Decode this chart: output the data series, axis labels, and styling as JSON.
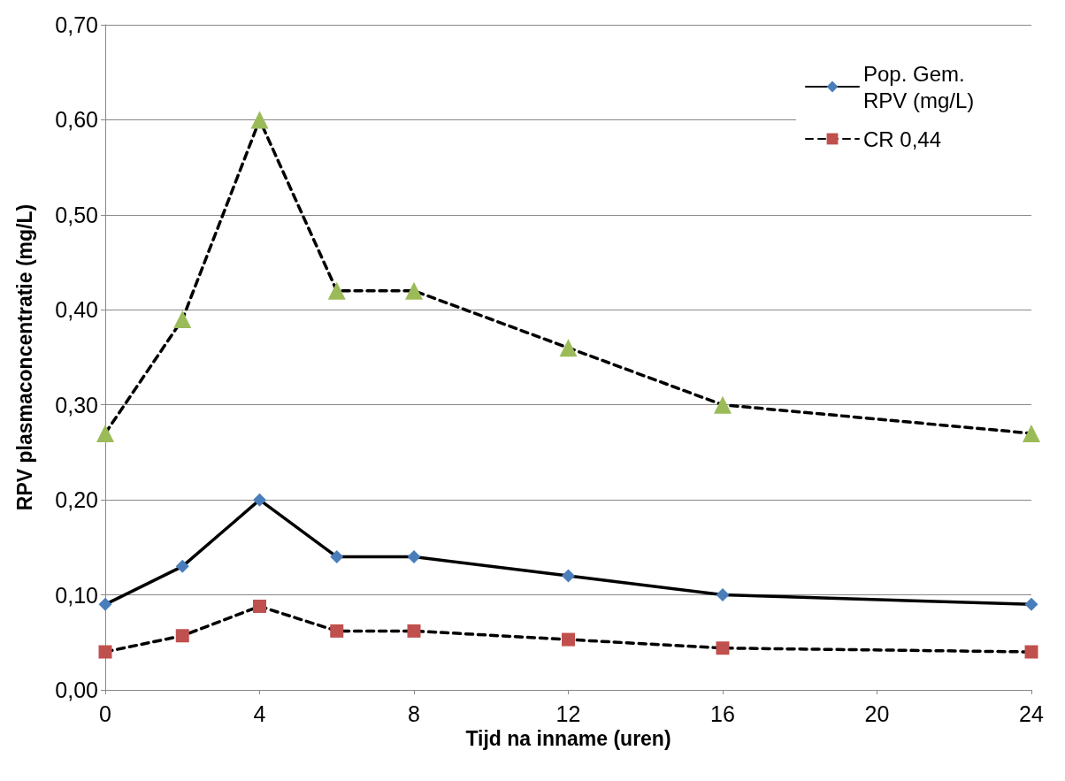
{
  "chart_data": {
    "type": "line",
    "xlabel": "Tijd na inname (uren)",
    "ylabel": "RPV plasmaconcentratie (mg/L)",
    "x": [
      0,
      2,
      4,
      6,
      8,
      12,
      16,
      24
    ],
    "xlim": [
      0,
      24
    ],
    "xticks": [
      0,
      4,
      8,
      12,
      16,
      20,
      24
    ],
    "ylim": [
      0,
      0.7
    ],
    "yticks": [
      {
        "value": 0,
        "label": "0,00"
      },
      {
        "value": 0.1,
        "label": "0,10"
      },
      {
        "value": 0.2,
        "label": "0,20"
      },
      {
        "value": 0.3,
        "label": "0,30"
      },
      {
        "value": 0.4,
        "label": "0,40"
      },
      {
        "value": 0.5,
        "label": "0,50"
      },
      {
        "value": 0.6,
        "label": "0,60"
      },
      {
        "value": 0.7,
        "label": "0,70"
      }
    ],
    "grid": "y",
    "legend": "top right",
    "series": [
      {
        "name": "Pop. Gem. RPV (mg/L)",
        "color": "#4a7ebb",
        "marker": "diamond",
        "line_style": "solid",
        "values": [
          0.09,
          0.13,
          0.2,
          0.14,
          0.14,
          0.12,
          0.1,
          0.09
        ]
      },
      {
        "name": "CR 0,44",
        "color": "#c0504d",
        "marker": "square",
        "line_style": "dashed",
        "values": [
          0.04,
          0.057,
          0.088,
          0.062,
          0.062,
          0.053,
          0.044,
          0.04
        ]
      },
      {
        "color": "#9bbb59",
        "marker": "triangle",
        "line_style": "dashed",
        "values": [
          0.27,
          0.39,
          0.6,
          0.42,
          0.42,
          0.36,
          0.3,
          0.27
        ]
      }
    ]
  }
}
